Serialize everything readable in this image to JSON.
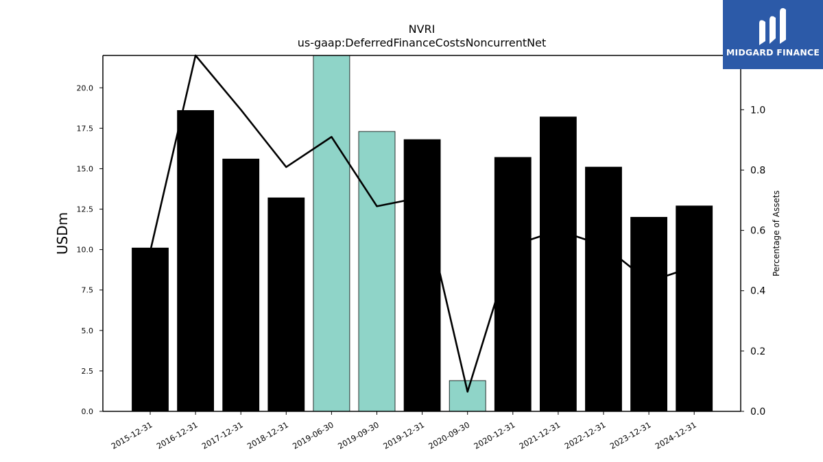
{
  "chart_data": {
    "type": "bar",
    "title": "NVRI",
    "subtitle": "us-gaap:DeferredFinanceCostsNoncurrentNet",
    "ylabel": "USDm",
    "y2label": "Percentage of Assets",
    "ylim": [
      0,
      22.0
    ],
    "y2lim": [
      0,
      1.18
    ],
    "yticks": [
      "0.0",
      "2.5",
      "5.0",
      "7.5",
      "10.0",
      "12.5",
      "15.0",
      "17.5",
      "20.0"
    ],
    "y2ticks": [
      "0.0",
      "0.2",
      "0.4",
      "0.6",
      "0.8",
      "1.0"
    ],
    "categories": [
      "2015-12-31",
      "2016-12-31",
      "2017-12-31",
      "2018-12-31",
      "2019-06-30",
      "2019-09-30",
      "2019-12-31",
      "2020-09-30",
      "2020-12-31",
      "2021-12-31",
      "2022-12-31",
      "2023-12-31",
      "2024-12-31"
    ],
    "series": [
      {
        "values": [
          10.1,
          18.6,
          15.6,
          13.2,
          22.0,
          17.3,
          16.8,
          1.9,
          15.7,
          18.2,
          15.1,
          12.0,
          12.7
        ],
        "colors": [
          "#000000",
          "#000000",
          "#000000",
          "#000000",
          "#8fd4c8",
          "#8fd4c8",
          "#000000",
          "#8fd4c8",
          "#000000",
          "#000000",
          "#000000",
          "#000000",
          "#000000"
        ]
      },
      {
        "axis": "right",
        "values": [
          0.53,
          1.18,
          1.0,
          0.81,
          0.91,
          0.68,
          0.71,
          0.065,
          0.55,
          0.6,
          0.55,
          0.43,
          0.48
        ],
        "color": "#000000"
      }
    ]
  },
  "logo": {
    "text": "MIDGARD FINANCE",
    "bg": "#2c5aa8"
  }
}
